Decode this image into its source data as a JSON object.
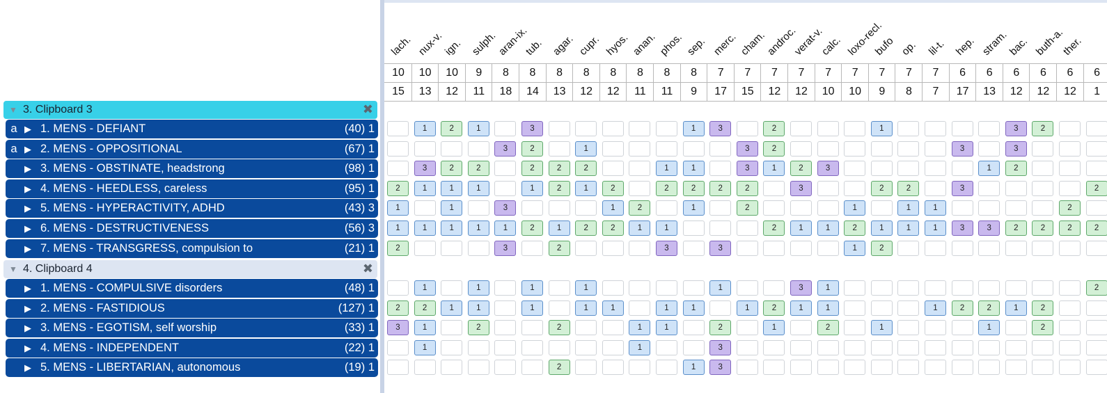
{
  "clipboards": [
    {
      "title": "3. Clipboard 3",
      "close_icon": "close-icon",
      "rubrics": [
        {
          "mark": "a",
          "label": "1. MENS - DEFIANT",
          "count": "(40) 1",
          "cells": [
            0,
            1,
            2,
            1,
            0,
            3,
            0,
            0,
            0,
            0,
            0,
            1,
            3,
            0,
            2,
            0,
            0,
            0,
            1,
            0,
            0,
            0,
            0,
            3,
            2,
            0,
            0
          ]
        },
        {
          "mark": "a",
          "label": "2. MENS - OPPOSITIONAL",
          "count": "(67) 1",
          "cells": [
            0,
            0,
            0,
            0,
            3,
            2,
            0,
            1,
            0,
            0,
            0,
            0,
            0,
            3,
            2,
            0,
            0,
            0,
            0,
            0,
            0,
            3,
            0,
            3,
            0,
            0,
            0
          ]
        },
        {
          "mark": "",
          "label": "3. MENS - OBSTINATE, headstrong",
          "count": "(98) 1",
          "cells": [
            0,
            3,
            2,
            2,
            0,
            2,
            2,
            2,
            0,
            0,
            1,
            1,
            0,
            3,
            1,
            2,
            3,
            0,
            0,
            0,
            0,
            0,
            1,
            2,
            0,
            0,
            0
          ]
        },
        {
          "mark": "",
          "label": "4. MENS - HEEDLESS, careless",
          "count": "(95) 1",
          "cells": [
            2,
            1,
            1,
            1,
            0,
            1,
            2,
            1,
            2,
            0,
            2,
            2,
            2,
            2,
            0,
            3,
            0,
            0,
            2,
            2,
            0,
            3,
            0,
            0,
            0,
            0,
            2
          ]
        },
        {
          "mark": "",
          "label": "5. MENS - HYPERACTIVITY, ADHD",
          "count": "(43) 3",
          "cells": [
            1,
            0,
            1,
            0,
            3,
            0,
            0,
            0,
            1,
            2,
            0,
            1,
            0,
            2,
            0,
            0,
            0,
            1,
            0,
            1,
            1,
            0,
            0,
            0,
            0,
            2,
            0
          ]
        },
        {
          "mark": "",
          "label": "6. MENS - DESTRUCTIVENESS",
          "count": "(56) 3",
          "cells": [
            1,
            1,
            1,
            1,
            1,
            2,
            1,
            2,
            2,
            1,
            1,
            0,
            0,
            0,
            2,
            1,
            1,
            2,
            1,
            1,
            1,
            3,
            3,
            2,
            2,
            2,
            2
          ]
        },
        {
          "mark": "",
          "label": "7. MENS - TRANSGRESS, compulsion to",
          "count": "(21) 1",
          "cells": [
            2,
            0,
            0,
            0,
            3,
            0,
            2,
            0,
            0,
            0,
            3,
            0,
            3,
            0,
            0,
            0,
            0,
            1,
            2,
            0,
            0,
            0,
            0,
            0,
            0,
            0,
            0
          ]
        }
      ]
    },
    {
      "title": "4. Clipboard 4",
      "close_icon": "close-icon",
      "rubrics": [
        {
          "mark": "",
          "label": "1. MENS - COMPULSIVE disorders",
          "count": "(48) 1",
          "cells": [
            0,
            1,
            0,
            1,
            0,
            1,
            0,
            1,
            0,
            0,
            0,
            0,
            1,
            0,
            0,
            3,
            1,
            0,
            0,
            0,
            0,
            0,
            0,
            0,
            0,
            0,
            2
          ]
        },
        {
          "mark": "",
          "label": "2. MENS - FASTIDIOUS",
          "count": "(127) 1",
          "cells": [
            2,
            2,
            1,
            1,
            0,
            1,
            0,
            1,
            1,
            0,
            1,
            1,
            0,
            1,
            2,
            1,
            1,
            0,
            0,
            0,
            1,
            2,
            2,
            1,
            2,
            0,
            0
          ]
        },
        {
          "mark": "",
          "label": "3. MENS - EGOTISM, self worship",
          "count": "(33) 1",
          "cells": [
            3,
            1,
            0,
            2,
            0,
            0,
            2,
            0,
            0,
            1,
            1,
            0,
            2,
            0,
            1,
            0,
            2,
            0,
            1,
            0,
            0,
            0,
            1,
            0,
            2,
            0,
            0
          ]
        },
        {
          "mark": "",
          "label": "4. MENS - INDEPENDENT",
          "count": "(22) 1",
          "cells": [
            0,
            1,
            0,
            0,
            0,
            0,
            0,
            0,
            0,
            1,
            0,
            0,
            3,
            0,
            0,
            0,
            0,
            0,
            0,
            0,
            0,
            0,
            0,
            0,
            0,
            0,
            0
          ]
        },
        {
          "mark": "",
          "label": "5. MENS - LIBERTARIAN, autonomous",
          "count": "(19) 1",
          "cells": [
            0,
            0,
            0,
            0,
            0,
            0,
            2,
            0,
            0,
            0,
            0,
            1,
            3,
            0,
            0,
            0,
            0,
            0,
            0,
            0,
            0,
            0,
            0,
            0,
            0,
            0,
            0
          ]
        }
      ]
    }
  ],
  "remedies": [
    {
      "name": "lach.",
      "score": "10",
      "rubrics": "15"
    },
    {
      "name": "nux-v.",
      "score": "10",
      "rubrics": "13"
    },
    {
      "name": "ign.",
      "score": "10",
      "rubrics": "12"
    },
    {
      "name": "sulph.",
      "score": "9",
      "rubrics": "11"
    },
    {
      "name": "aran-ix.",
      "score": "8",
      "rubrics": "18"
    },
    {
      "name": "tub.",
      "score": "8",
      "rubrics": "14"
    },
    {
      "name": "agar.",
      "score": "8",
      "rubrics": "13"
    },
    {
      "name": "cupr.",
      "score": "8",
      "rubrics": "12"
    },
    {
      "name": "hyos.",
      "score": "8",
      "rubrics": "12"
    },
    {
      "name": "anan.",
      "score": "8",
      "rubrics": "11"
    },
    {
      "name": "phos.",
      "score": "8",
      "rubrics": "11"
    },
    {
      "name": "sep.",
      "score": "8",
      "rubrics": "9"
    },
    {
      "name": "merc.",
      "score": "7",
      "rubrics": "17"
    },
    {
      "name": "cham.",
      "score": "7",
      "rubrics": "15"
    },
    {
      "name": "androc.",
      "score": "7",
      "rubrics": "12"
    },
    {
      "name": "verat-v.",
      "score": "7",
      "rubrics": "12"
    },
    {
      "name": "calc.",
      "score": "7",
      "rubrics": "10"
    },
    {
      "name": "loxo-recl.",
      "score": "7",
      "rubrics": "10"
    },
    {
      "name": "bufo",
      "score": "7",
      "rubrics": "9"
    },
    {
      "name": "op.",
      "score": "7",
      "rubrics": "8"
    },
    {
      "name": "lil-t.",
      "score": "7",
      "rubrics": "7"
    },
    {
      "name": "hep.",
      "score": "6",
      "rubrics": "17"
    },
    {
      "name": "stram.",
      "score": "6",
      "rubrics": "13"
    },
    {
      "name": "bac.",
      "score": "6",
      "rubrics": "12"
    },
    {
      "name": "buth-a.",
      "score": "6",
      "rubrics": "12"
    },
    {
      "name": "ther.",
      "score": "6",
      "rubrics": "12"
    },
    {
      "name": "",
      "score": "6",
      "rubrics": "1"
    }
  ],
  "colors": {
    "rubric_bg": "#0a4a9c",
    "clipboard3_header": "#37d0e8",
    "clipboard4_header": "#dde5f2",
    "grade1": "#cfe3f8",
    "grade2": "#d3f0d6",
    "grade3": "#c9b9ee"
  }
}
